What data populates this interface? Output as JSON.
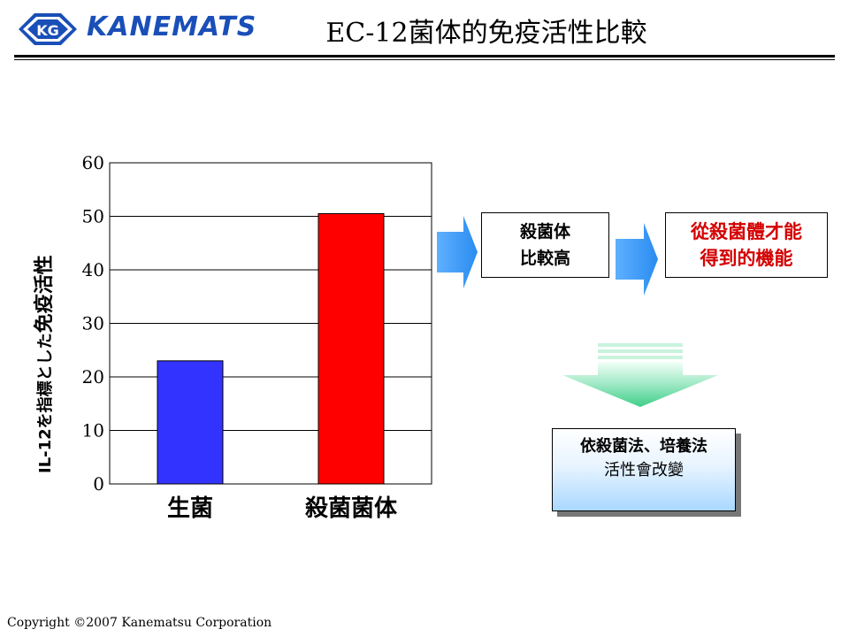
{
  "header": {
    "logo_badge": "KG",
    "logo_text": "KANEMATS",
    "title": "EC-12菌体的免疫活性比較"
  },
  "chart_data": {
    "type": "bar",
    "ylabel_prefix": "IL-12を指標とした",
    "ylabel_main": "免疫活性",
    "categories": [
      "生菌",
      "殺菌菌体"
    ],
    "values": [
      23,
      50.5
    ],
    "colors": [
      "#3333ff",
      "#ff0000"
    ],
    "ylim": [
      0,
      60
    ],
    "yticks": [
      "0",
      "10",
      "20",
      "30",
      "40",
      "50",
      "60"
    ],
    "grid": true
  },
  "flow": {
    "compare_line1": "殺菌体",
    "compare_line2": "比較高",
    "function_line1": "從殺菌體才能",
    "function_line2": "得到的機能",
    "change_line1": "依殺菌法、培養法",
    "change_line2": "活性會改變"
  },
  "footer": {
    "copyright": "Copyright ©2007 Kanematsu Corporation"
  },
  "colors": {
    "arrow_blue": "#3399ff",
    "down_arrow_green": "#66d9a0",
    "function_text": "#d40000"
  }
}
